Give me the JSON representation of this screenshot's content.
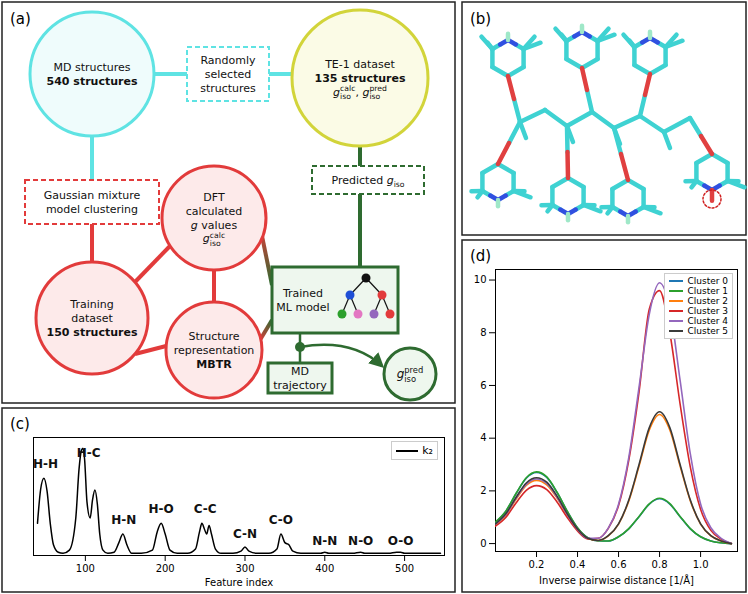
{
  "diagram": {
    "panel_label": "(a)",
    "nodes": {
      "md": [
        "MD structures",
        "540 structures"
      ],
      "random": [
        "Randomly",
        "selected",
        "structures"
      ],
      "te1": [
        "TE-1 dataset",
        "135 structures",
        [
          {
            "base": "g",
            "sub": "iso",
            "sup": "calc"
          },
          ", ",
          {
            "base": "g",
            "sub": "iso",
            "sup": "pred"
          }
        ]
      ],
      "gmm": [
        "Gaussian mixture",
        "model clustering"
      ],
      "training": [
        "Training",
        "dataset",
        "150 structures"
      ],
      "dft": [
        "DFT",
        "calculated",
        [
          {
            "base": "g"
          },
          " values"
        ],
        [
          {
            "base": "g",
            "sub": "iso",
            "sup": "calc"
          }
        ]
      ],
      "representation": [
        "Structure",
        "representation",
        "MBTR"
      ],
      "predicted": [
        [
          "Predicted ",
          {
            "base": "g",
            "sub": "iso"
          }
        ]
      ],
      "ml": [
        "Trained",
        "ML model"
      ],
      "trajectory": [
        "MD",
        "trajectory"
      ],
      "gpred": [
        [
          {
            "base": "g",
            "sub": "iso",
            "sup": "pred"
          }
        ]
      ]
    }
  },
  "molecule": {
    "panel_label": "(b)"
  },
  "chart_data": [
    {
      "type": "line",
      "panel_label": "(c)",
      "x_label": "Feature index",
      "xlim": [
        35,
        550
      ],
      "xticks": [
        100,
        200,
        300,
        400,
        500
      ],
      "ylim": [
        0,
        1.1
      ],
      "yticks": [],
      "tick_labels": "x",
      "legend": "top-right",
      "x": [
        40,
        44,
        48,
        52,
        56,
        60,
        66,
        72,
        80,
        88,
        92,
        95,
        97,
        99,
        102,
        106,
        109,
        112,
        115,
        118,
        122,
        128,
        136,
        142,
        147,
        152,
        158,
        170,
        184,
        190,
        195,
        200,
        206,
        215,
        228,
        238,
        243,
        246,
        249,
        252,
        255,
        258,
        263,
        270,
        285,
        295,
        300,
        305,
        315,
        330,
        340,
        345,
        350,
        355,
        360,
        370,
        385,
        395,
        400,
        405,
        415,
        435,
        445,
        450,
        460,
        480,
        490,
        495,
        500,
        510,
        530,
        545
      ],
      "series": [
        {
          "name": "k₂",
          "color": "#000000",
          "values": [
            0.3,
            0.62,
            0.72,
            0.6,
            0.3,
            0.1,
            0.03,
            0.02,
            0.05,
            0.35,
            0.8,
            0.98,
            1.0,
            0.9,
            0.5,
            0.35,
            0.52,
            0.61,
            0.48,
            0.2,
            0.05,
            0.02,
            0.03,
            0.12,
            0.2,
            0.1,
            0.02,
            0.02,
            0.05,
            0.22,
            0.3,
            0.2,
            0.05,
            0.02,
            0.02,
            0.06,
            0.22,
            0.3,
            0.25,
            0.2,
            0.28,
            0.2,
            0.06,
            0.02,
            0.02,
            0.04,
            0.08,
            0.04,
            0.02,
            0.02,
            0.06,
            0.2,
            0.12,
            0.1,
            0.04,
            0.02,
            0.02,
            0.02,
            0.03,
            0.02,
            0.02,
            0.02,
            0.03,
            0.02,
            0.02,
            0.02,
            0.03,
            0.03,
            0.02,
            0.02,
            0.02,
            0.02
          ]
        }
      ],
      "annotations": [
        {
          "text": "H-H",
          "x": 50,
          "y": 0.85
        },
        {
          "text": "H-C",
          "x": 104,
          "y": 0.95
        },
        {
          "text": "H-N",
          "x": 148,
          "y": 0.33
        },
        {
          "text": "H-O",
          "x": 195,
          "y": 0.43
        },
        {
          "text": "C-C",
          "x": 250,
          "y": 0.43
        },
        {
          "text": "C-N",
          "x": 300,
          "y": 0.2
        },
        {
          "text": "C-O",
          "x": 345,
          "y": 0.33
        },
        {
          "text": "N-N",
          "x": 400,
          "y": 0.13
        },
        {
          "text": "N-O",
          "x": 445,
          "y": 0.13
        },
        {
          "text": "O-O",
          "x": 495,
          "y": 0.13
        }
      ]
    },
    {
      "type": "line",
      "panel_label": "(d)",
      "x_label": "Inverse pairwise distance [1/Å]",
      "xlim": [
        0,
        1.18
      ],
      "xticks": [
        0.2,
        0.4,
        0.6,
        0.8,
        {
          "value": 1,
          "label": "1.0"
        }
      ],
      "ylim": [
        -0.3,
        10.4
      ],
      "yticks": [
        0,
        2,
        4,
        6,
        8,
        10
      ],
      "legend": "top-right",
      "x": [
        0,
        0.05,
        0.1,
        0.15,
        0.2,
        0.25,
        0.3,
        0.35,
        0.4,
        0.45,
        0.5,
        0.55,
        0.6,
        0.65,
        0.7,
        0.75,
        0.8,
        0.85,
        0.9,
        0.95,
        1.0,
        1.05,
        1.1,
        1.15
      ],
      "series": [
        {
          "name": "Cluster 0",
          "color": "#1f77b4",
          "values": [
            0.81,
            1.22,
            1.89,
            2.48,
            2.7,
            2.51,
            1.94,
            1.22,
            0.59,
            0.22,
            0.11,
            0.1,
            0.26,
            0.56,
            1.02,
            1.5,
            1.7,
            1.5,
            1.02,
            0.56,
            0.26,
            0.1,
            0.03,
            0.0
          ]
        },
        {
          "name": "Cluster 1",
          "color": "#2ca02c",
          "values": [
            0.82,
            1.23,
            1.9,
            2.5,
            2.72,
            2.53,
            1.95,
            1.23,
            0.6,
            0.22,
            0.11,
            0.1,
            0.26,
            0.57,
            1.03,
            1.51,
            1.72,
            1.52,
            1.03,
            0.57,
            0.26,
            0.1,
            0.03,
            0.0
          ]
        },
        {
          "name": "Cluster 2",
          "color": "#ff7f0e",
          "values": [
            0.72,
            1.08,
            1.68,
            2.21,
            2.4,
            2.23,
            1.73,
            1.08,
            0.53,
            0.19,
            0.12,
            0.29,
            0.74,
            1.62,
            2.94,
            4.31,
            4.9,
            4.31,
            2.94,
            1.62,
            0.74,
            0.29,
            0.1,
            0.0
          ]
        },
        {
          "name": "Cluster 3",
          "color": "#d62728",
          "values": [
            0.66,
            0.99,
            1.54,
            2.02,
            2.2,
            2.05,
            1.58,
            0.99,
            0.48,
            0.18,
            0.2,
            0.58,
            1.44,
            3.17,
            5.76,
            8.9,
            9.6,
            8.0,
            5.3,
            2.9,
            1.3,
            0.5,
            0.17,
            0.0
          ]
        },
        {
          "name": "Cluster 4",
          "color": "#9467bd",
          "values": [
            0.74,
            1.1,
            1.72,
            2.25,
            2.45,
            2.28,
            1.76,
            1.1,
            0.54,
            0.2,
            0.2,
            0.59,
            1.49,
            3.27,
            5.94,
            8.71,
            9.9,
            8.9,
            6.2,
            3.4,
            1.5,
            0.6,
            0.2,
            0.0
          ]
        },
        {
          "name": "Cluster 5",
          "color": "#3a3a3a",
          "values": [
            0.75,
            1.13,
            1.75,
            2.3,
            2.5,
            2.33,
            1.8,
            1.13,
            0.55,
            0.2,
            0.12,
            0.3,
            0.75,
            1.65,
            3.0,
            4.4,
            5.0,
            4.4,
            3.0,
            1.65,
            0.75,
            0.3,
            0.1,
            0.0
          ]
        }
      ]
    }
  ]
}
